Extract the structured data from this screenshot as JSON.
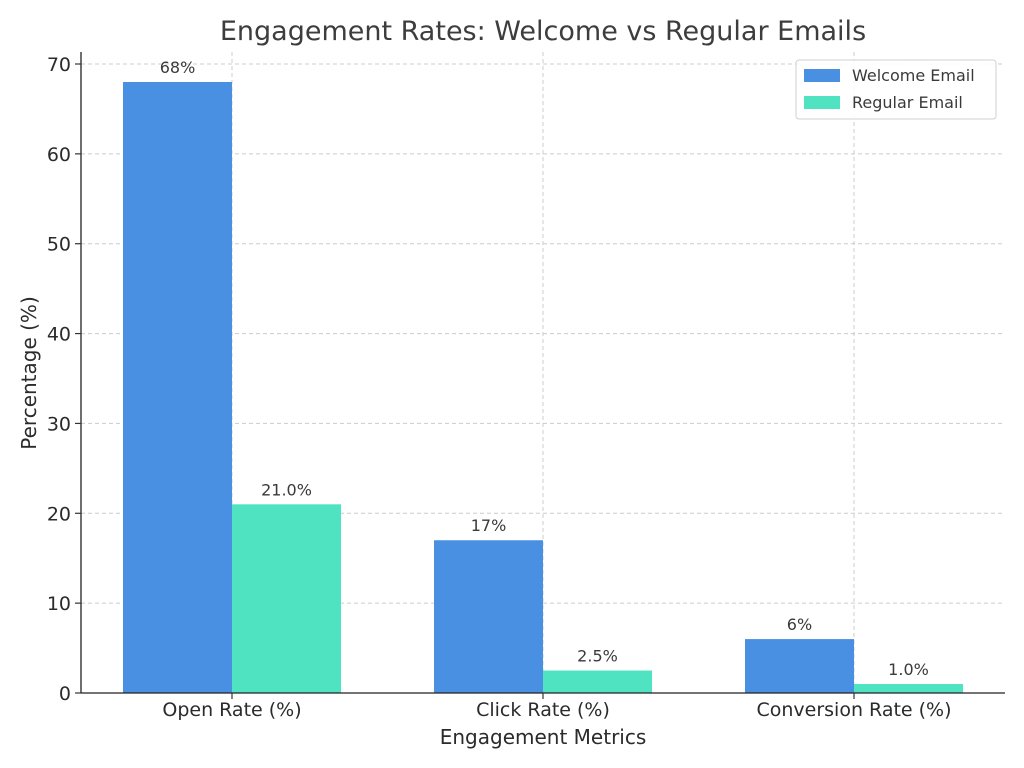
{
  "chart_data": {
    "type": "bar",
    "title": "Engagement Rates: Welcome vs Regular Emails",
    "xlabel": "Engagement Metrics",
    "ylabel": "Percentage (%)",
    "categories": [
      "Open Rate (%)",
      "Click Rate (%)",
      "Conversion Rate (%)"
    ],
    "series": [
      {
        "name": "Welcome Email",
        "values": [
          68,
          17,
          6
        ],
        "labels": [
          "68%",
          "17%",
          "6%"
        ],
        "color": "#4a90e2"
      },
      {
        "name": "Regular Email",
        "values": [
          21.0,
          2.5,
          1.0
        ],
        "labels": [
          "21.0%",
          "2.5%",
          "1.0%"
        ],
        "color": "#50e3c2"
      }
    ],
    "ylim": [
      0,
      70
    ],
    "yticks": [
      0,
      10,
      20,
      30,
      40,
      50,
      60,
      70
    ],
    "grid": true,
    "legend_position": "top-right"
  }
}
